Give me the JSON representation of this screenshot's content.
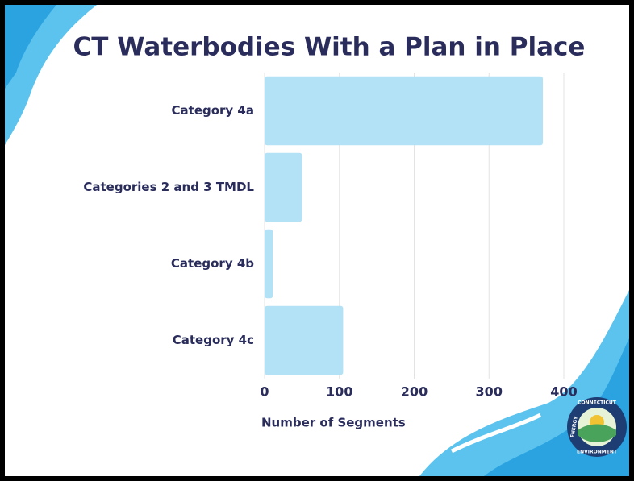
{
  "chart_data": {
    "type": "bar",
    "orientation": "horizontal",
    "title": "CT Waterbodies With a Plan in Place",
    "categories": [
      "Category 4a",
      "Categories 2 and 3 TMDL",
      "Category 4b",
      "Category 4c"
    ],
    "values": [
      372,
      50,
      11,
      105
    ],
    "color": "#b3e1f5",
    "xlim": [
      0,
      400
    ],
    "xticks": [
      0,
      100,
      200,
      300,
      400
    ],
    "xlabel": "Number of Segments",
    "grid": true
  },
  "logo": {
    "top": "CONNECTICUT",
    "left": "ENERGY",
    "bottom": "ENVIRONMENT"
  }
}
